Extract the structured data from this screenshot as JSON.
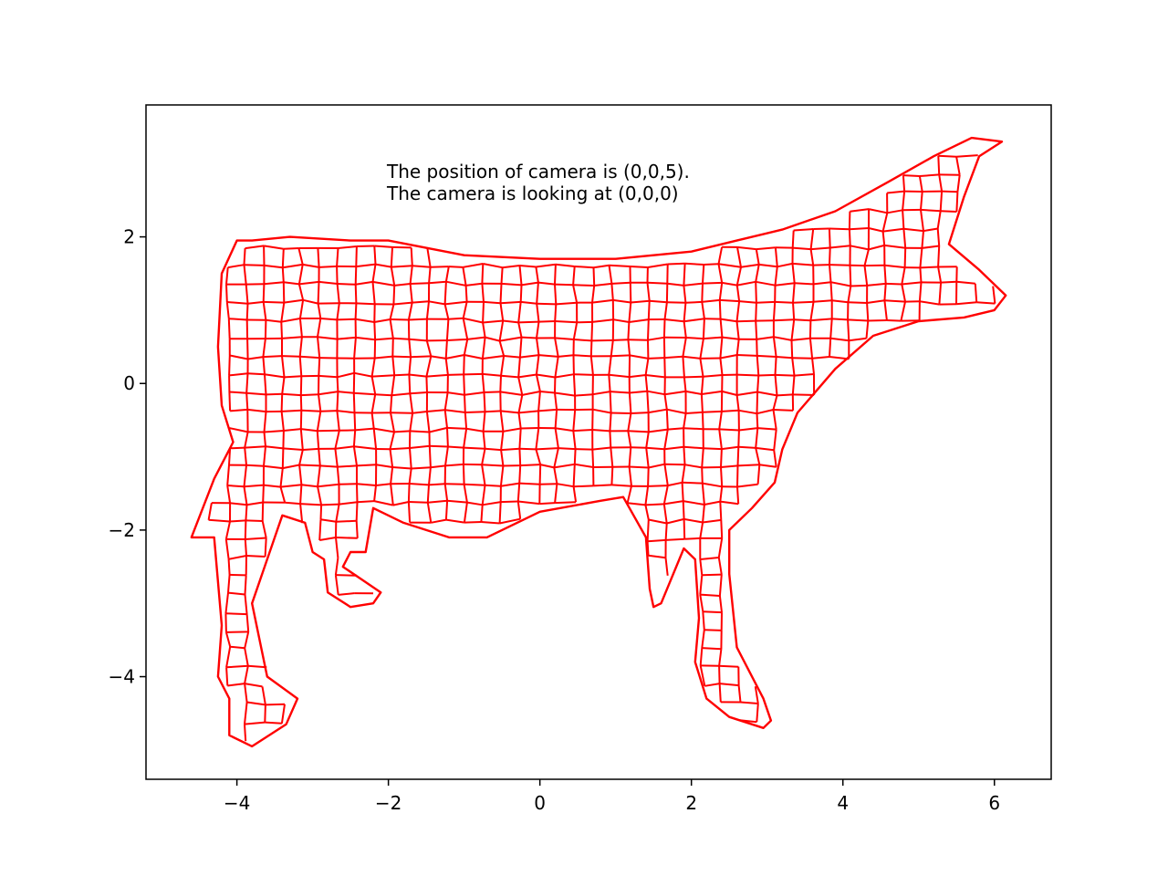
{
  "chart_data": {
    "type": "line",
    "title": "",
    "xlabel": "",
    "ylabel": "",
    "xlim": [
      -5.2,
      6.75
    ],
    "ylim": [
      -5.4,
      3.8
    ],
    "x_ticks": [
      -4,
      -2,
      0,
      2,
      4,
      6
    ],
    "x_tick_labels": [
      "−4",
      "−2",
      "0",
      "2",
      "4",
      "6"
    ],
    "y_ticks": [
      2,
      0,
      -2,
      -4
    ],
    "y_tick_labels": [
      "2",
      "0",
      "−2",
      "−4"
    ],
    "grid": false,
    "legend": "none",
    "line_color": "#ff0000",
    "annotations": [
      {
        "text": "The position of camera is (0,0,5).",
        "x": -2.0,
        "y": 2.8
      },
      {
        "text": "The camera is looking at (0,0,0)",
        "x": -2.0,
        "y": 2.5
      }
    ],
    "series": [
      {
        "values": [
          [
            -3.8,
            1.95
          ],
          [
            -3.3,
            2.0
          ],
          [
            -2.5,
            1.95
          ],
          [
            -2.0,
            1.95
          ],
          [
            -1.0,
            1.75
          ],
          [
            0.0,
            1.7
          ],
          [
            1.0,
            1.7
          ],
          [
            2.0,
            1.8
          ],
          [
            2.6,
            1.95
          ],
          [
            3.2,
            2.1
          ],
          [
            3.9,
            2.35
          ],
          [
            4.6,
            2.75
          ],
          [
            5.2,
            3.1
          ],
          [
            5.7,
            3.35
          ],
          [
            6.1,
            3.3
          ],
          [
            5.8,
            3.1
          ],
          [
            5.6,
            2.55
          ],
          [
            5.4,
            1.9
          ],
          [
            5.8,
            1.55
          ],
          [
            6.15,
            1.2
          ],
          [
            6.0,
            1.0
          ],
          [
            5.6,
            0.9
          ],
          [
            5.0,
            0.85
          ],
          [
            4.4,
            0.65
          ],
          [
            3.9,
            0.2
          ],
          [
            3.4,
            -0.4
          ],
          [
            3.2,
            -0.9
          ],
          [
            3.1,
            -1.35
          ],
          [
            2.8,
            -1.7
          ],
          [
            2.5,
            -2.0
          ],
          [
            2.5,
            -2.6
          ],
          [
            2.6,
            -3.6
          ],
          [
            2.95,
            -4.3
          ],
          [
            3.05,
            -4.6
          ],
          [
            2.95,
            -4.7
          ],
          [
            2.5,
            -4.55
          ],
          [
            2.2,
            -4.3
          ],
          [
            2.05,
            -3.8
          ],
          [
            2.1,
            -3.2
          ],
          [
            2.05,
            -2.4
          ],
          [
            1.9,
            -2.25
          ],
          [
            1.6,
            -3.0
          ],
          [
            1.5,
            -3.05
          ],
          [
            1.45,
            -2.8
          ],
          [
            1.4,
            -2.1
          ],
          [
            1.1,
            -1.55
          ],
          [
            0.8,
            -1.6
          ],
          [
            0.0,
            -1.75
          ],
          [
            -0.7,
            -2.1
          ],
          [
            -1.2,
            -2.1
          ],
          [
            -1.8,
            -1.9
          ],
          [
            -2.2,
            -1.7
          ],
          [
            -2.3,
            -2.3
          ],
          [
            -2.5,
            -2.3
          ],
          [
            -2.6,
            -2.5
          ],
          [
            -2.1,
            -2.85
          ],
          [
            -2.2,
            -3.0
          ],
          [
            -2.5,
            -3.05
          ],
          [
            -2.8,
            -2.85
          ],
          [
            -2.85,
            -2.4
          ],
          [
            -3.0,
            -2.3
          ],
          [
            -3.1,
            -1.9
          ],
          [
            -3.4,
            -1.8
          ],
          [
            -3.5,
            -2.1
          ],
          [
            -3.8,
            -3.0
          ],
          [
            -3.6,
            -4.0
          ],
          [
            -3.2,
            -4.3
          ],
          [
            -3.35,
            -4.65
          ],
          [
            -3.8,
            -4.95
          ],
          [
            -4.1,
            -4.8
          ],
          [
            -4.1,
            -4.3
          ],
          [
            -4.25,
            -4.0
          ],
          [
            -4.2,
            -3.3
          ],
          [
            -4.3,
            -2.1
          ],
          [
            -4.6,
            -2.1
          ],
          [
            -4.3,
            -1.3
          ],
          [
            -4.05,
            -0.8
          ],
          [
            -4.2,
            -0.3
          ],
          [
            -4.25,
            0.5
          ],
          [
            -4.2,
            1.5
          ],
          [
            -4.0,
            1.95
          ],
          [
            -3.8,
            1.95
          ]
        ]
      }
    ]
  }
}
